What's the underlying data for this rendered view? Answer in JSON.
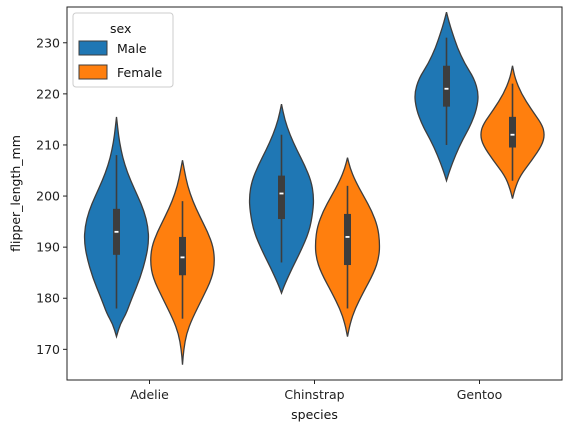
{
  "chart_data": {
    "type": "violin",
    "xlabel": "species",
    "ylabel": "flipper_length_mm",
    "categories": [
      "Adelie",
      "Chinstrap",
      "Gentoo"
    ],
    "ylim": [
      164,
      237
    ],
    "yticks": [
      170,
      180,
      190,
      200,
      210,
      220,
      230
    ],
    "legend": {
      "title": "sex",
      "placement": "top-left"
    },
    "series": [
      {
        "name": "Male",
        "color": "#1f77b4",
        "violins": [
          {
            "min": 172.5,
            "max": 215.5,
            "q1": 188.5,
            "median": 193,
            "q3": 197.5,
            "whisker_low": 178,
            "whisker_high": 208,
            "profile": [
              [
                172.5,
                0
              ],
              [
                175,
                0.12
              ],
              [
                177,
                0.3
              ],
              [
                180,
                0.48
              ],
              [
                184,
                0.74
              ],
              [
                188,
                0.92
              ],
              [
                191,
                1.0
              ],
              [
                194,
                0.98
              ],
              [
                197,
                0.86
              ],
              [
                200,
                0.66
              ],
              [
                203,
                0.44
              ],
              [
                206,
                0.26
              ],
              [
                209,
                0.14
              ],
              [
                212,
                0.06
              ],
              [
                215.5,
                0
              ]
            ]
          },
          {
            "min": 181,
            "max": 218,
            "q1": 195.5,
            "median": 200.5,
            "q3": 204,
            "whisker_low": 187,
            "whisker_high": 212,
            "profile": [
              [
                181,
                0
              ],
              [
                183,
                0.12
              ],
              [
                186,
                0.34
              ],
              [
                189,
                0.58
              ],
              [
                193,
                0.86
              ],
              [
                197,
                0.98
              ],
              [
                200,
                1.0
              ],
              [
                203,
                0.92
              ],
              [
                206,
                0.72
              ],
              [
                209,
                0.48
              ],
              [
                212,
                0.26
              ],
              [
                215,
                0.1
              ],
              [
                218,
                0
              ]
            ]
          },
          {
            "min": 203,
            "max": 236,
            "q1": 217.5,
            "median": 221,
            "q3": 225.5,
            "whisker_low": 210,
            "whisker_high": 231,
            "profile": [
              [
                203,
                0
              ],
              [
                205,
                0.1
              ],
              [
                208,
                0.28
              ],
              [
                211,
                0.5
              ],
              [
                214,
                0.76
              ],
              [
                217,
                0.94
              ],
              [
                220,
                1.0
              ],
              [
                223,
                0.86
              ],
              [
                226,
                0.56
              ],
              [
                229,
                0.34
              ],
              [
                232,
                0.18
              ],
              [
                234,
                0.08
              ],
              [
                236,
                0
              ]
            ]
          }
        ]
      },
      {
        "name": "Female",
        "color": "#ff7f0e",
        "violins": [
          {
            "min": 167,
            "max": 207,
            "q1": 184.5,
            "median": 188,
            "q3": 192,
            "whisker_low": 176,
            "whisker_high": 199,
            "profile": [
              [
                167,
                0
              ],
              [
                170,
                0.04
              ],
              [
                173,
                0.12
              ],
              [
                176,
                0.3
              ],
              [
                180,
                0.62
              ],
              [
                184,
                0.92
              ],
              [
                187,
                1.0
              ],
              [
                190,
                0.96
              ],
              [
                193,
                0.78
              ],
              [
                196,
                0.54
              ],
              [
                199,
                0.32
              ],
              [
                202,
                0.16
              ],
              [
                205,
                0.06
              ],
              [
                207,
                0
              ]
            ]
          },
          {
            "min": 172.5,
            "max": 207.5,
            "q1": 186.5,
            "median": 192,
            "q3": 196.5,
            "whisker_low": 178,
            "whisker_high": 202,
            "profile": [
              [
                172.5,
                0
              ],
              [
                175,
                0.08
              ],
              [
                178,
                0.24
              ],
              [
                181,
                0.48
              ],
              [
                185,
                0.82
              ],
              [
                188,
                0.98
              ],
              [
                191,
                1.0
              ],
              [
                194,
                0.94
              ],
              [
                197,
                0.76
              ],
              [
                200,
                0.5
              ],
              [
                203,
                0.24
              ],
              [
                205.5,
                0.08
              ],
              [
                207.5,
                0
              ]
            ]
          },
          {
            "min": 199.5,
            "max": 225.5,
            "q1": 209.5,
            "median": 212,
            "q3": 215.5,
            "whisker_low": 203,
            "whisker_high": 222,
            "profile": [
              [
                199.5,
                0
              ],
              [
                201.5,
                0.08
              ],
              [
                204,
                0.24
              ],
              [
                207,
                0.6
              ],
              [
                210,
                0.92
              ],
              [
                212,
                1.0
              ],
              [
                214,
                0.92
              ],
              [
                217,
                0.58
              ],
              [
                220,
                0.28
              ],
              [
                223,
                0.08
              ],
              [
                225.5,
                0
              ]
            ]
          }
        ]
      }
    ]
  }
}
